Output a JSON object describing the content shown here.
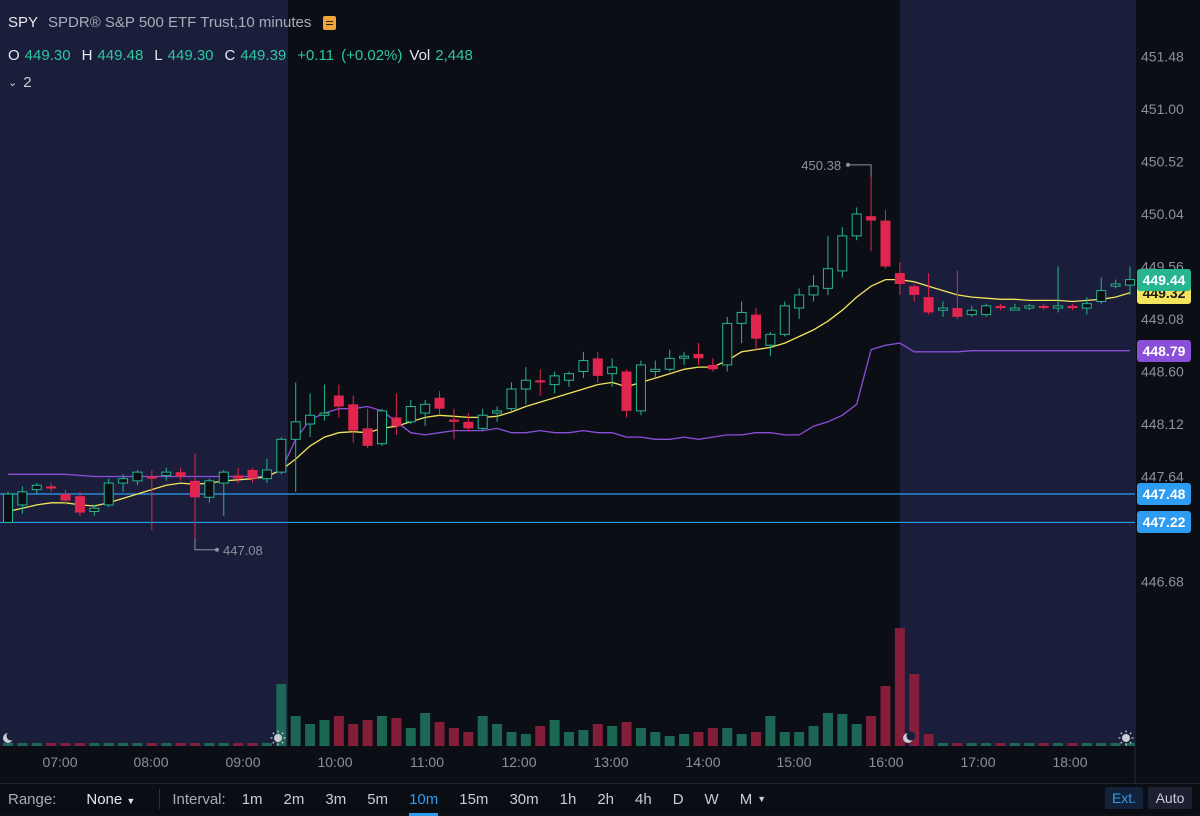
{
  "header": {
    "symbol": "SPY",
    "name": "SPDR® S&P 500 ETF Trust,10 minutes",
    "o_label": "O",
    "o_value": "449.30",
    "h_label": "H",
    "h_value": "449.48",
    "l_label": "L",
    "l_value": "449.30",
    "c_label": "C",
    "c_value": "449.39",
    "change": "+0.11",
    "change_pct": "(+0.02%)",
    "vol_label": "Vol",
    "vol_value": "2,448",
    "indicator_count": "2"
  },
  "price_badges": [
    {
      "text": "449.44",
      "value": 449.44,
      "bg": "#26b58f",
      "fg": "#ffffff"
    },
    {
      "text": "448.79",
      "value": 448.79,
      "bg": "#8a4fd8",
      "fg": "#ffffff"
    },
    {
      "text": "447.48",
      "value": 447.48,
      "bg": "#2e9cf0",
      "fg": "#ffffff"
    },
    {
      "text": "447.22",
      "value": 447.22,
      "bg": "#2e9cf0",
      "fg": "#ffffff"
    }
  ],
  "ma_badge": {
    "text": "449.32",
    "value": 449.32,
    "bg": "#f2e45c",
    "fg": "#1a1a1a"
  },
  "bottom_bar": {
    "range_label": "Range:",
    "range_value": "None",
    "interval_label": "Interval:",
    "intervals": [
      "1m",
      "2m",
      "3m",
      "5m",
      "10m",
      "15m",
      "30m",
      "1h",
      "2h",
      "4h",
      "D",
      "W",
      "M"
    ],
    "active_interval": "10m",
    "ext_label": "Ext.",
    "auto_label": "Auto"
  },
  "chart_data": {
    "type": "candlestick",
    "colors": {
      "up": "#26b58f",
      "down": "#e0264f",
      "ma": "#f2e45c",
      "vwap": "#8a4fd8",
      "hline": "#2e9cf0",
      "extended_bg": "#1a1e3a"
    },
    "y_ticks": [
      451.48,
      451.0,
      450.52,
      450.04,
      449.56,
      449.08,
      448.6,
      448.12,
      447.64,
      446.68
    ],
    "ylim": [
      446.4,
      451.7
    ],
    "x_ticks": [
      "07:00",
      "08:00",
      "09:00",
      "10:00",
      "11:00",
      "12:00",
      "13:00",
      "14:00",
      "15:00",
      "16:00",
      "17:00",
      "18:00"
    ],
    "horizontal_lines": [
      447.48,
      447.22
    ],
    "annotations": [
      {
        "text": "450.38",
        "value": 450.38
      },
      {
        "text": "447.08",
        "value": 447.08
      }
    ],
    "candles": [
      {
        "o": 447.22,
        "h": 447.5,
        "l": 447.22,
        "c": 447.48
      },
      {
        "o": 447.38,
        "h": 447.55,
        "l": 447.3,
        "c": 447.5
      },
      {
        "o": 447.52,
        "h": 447.58,
        "l": 447.48,
        "c": 447.56
      },
      {
        "o": 447.55,
        "h": 447.58,
        "l": 447.5,
        "c": 447.53
      },
      {
        "o": 447.48,
        "h": 447.52,
        "l": 447.38,
        "c": 447.42
      },
      {
        "o": 447.46,
        "h": 447.5,
        "l": 447.28,
        "c": 447.31
      },
      {
        "o": 447.32,
        "h": 447.38,
        "l": 447.28,
        "c": 447.35
      },
      {
        "o": 447.38,
        "h": 447.62,
        "l": 447.36,
        "c": 447.58
      },
      {
        "o": 447.58,
        "h": 447.66,
        "l": 447.5,
        "c": 447.62
      },
      {
        "o": 447.6,
        "h": 447.7,
        "l": 447.56,
        "c": 447.68
      },
      {
        "o": 447.64,
        "h": 447.7,
        "l": 447.15,
        "c": 447.62
      },
      {
        "o": 447.65,
        "h": 447.72,
        "l": 447.6,
        "c": 447.68
      },
      {
        "o": 447.68,
        "h": 447.72,
        "l": 447.6,
        "c": 447.64
      },
      {
        "o": 447.6,
        "h": 447.85,
        "l": 447.08,
        "c": 447.45
      },
      {
        "o": 447.45,
        "h": 447.62,
        "l": 447.4,
        "c": 447.6
      },
      {
        "o": 447.58,
        "h": 447.7,
        "l": 447.28,
        "c": 447.68
      },
      {
        "o": 447.65,
        "h": 447.72,
        "l": 447.58,
        "c": 447.62
      },
      {
        "o": 447.7,
        "h": 447.72,
        "l": 447.58,
        "c": 447.62
      },
      {
        "o": 447.62,
        "h": 447.8,
        "l": 447.58,
        "c": 447.7
      },
      {
        "o": 447.68,
        "h": 448.0,
        "l": 447.66,
        "c": 447.98
      },
      {
        "o": 447.98,
        "h": 448.5,
        "l": 447.5,
        "c": 448.14
      },
      {
        "o": 448.12,
        "h": 448.4,
        "l": 448.0,
        "c": 448.2
      },
      {
        "o": 448.2,
        "h": 448.48,
        "l": 448.15,
        "c": 448.22
      },
      {
        "o": 448.38,
        "h": 448.48,
        "l": 448.18,
        "c": 448.28
      },
      {
        "o": 448.3,
        "h": 448.38,
        "l": 447.95,
        "c": 448.06
      },
      {
        "o": 448.08,
        "h": 448.26,
        "l": 447.9,
        "c": 447.92
      },
      {
        "o": 447.94,
        "h": 448.26,
        "l": 447.92,
        "c": 448.24
      },
      {
        "o": 448.18,
        "h": 448.4,
        "l": 448.02,
        "c": 448.1
      },
      {
        "o": 448.14,
        "h": 448.34,
        "l": 448.12,
        "c": 448.28
      },
      {
        "o": 448.22,
        "h": 448.34,
        "l": 448.1,
        "c": 448.3
      },
      {
        "o": 448.36,
        "h": 448.42,
        "l": 448.2,
        "c": 448.26
      },
      {
        "o": 448.16,
        "h": 448.26,
        "l": 447.98,
        "c": 448.14
      },
      {
        "o": 448.14,
        "h": 448.22,
        "l": 448.05,
        "c": 448.08
      },
      {
        "o": 448.08,
        "h": 448.26,
        "l": 448.06,
        "c": 448.2
      },
      {
        "o": 448.22,
        "h": 448.28,
        "l": 448.14,
        "c": 448.24
      },
      {
        "o": 448.26,
        "h": 448.5,
        "l": 448.24,
        "c": 448.44
      },
      {
        "o": 448.44,
        "h": 448.64,
        "l": 448.3,
        "c": 448.52
      },
      {
        "o": 448.52,
        "h": 448.62,
        "l": 448.38,
        "c": 448.5
      },
      {
        "o": 448.48,
        "h": 448.6,
        "l": 448.4,
        "c": 448.56
      },
      {
        "o": 448.52,
        "h": 448.6,
        "l": 448.46,
        "c": 448.58
      },
      {
        "o": 448.6,
        "h": 448.78,
        "l": 448.54,
        "c": 448.7
      },
      {
        "o": 448.72,
        "h": 448.78,
        "l": 448.5,
        "c": 448.56
      },
      {
        "o": 448.58,
        "h": 448.72,
        "l": 448.46,
        "c": 448.64
      },
      {
        "o": 448.6,
        "h": 448.62,
        "l": 448.18,
        "c": 448.24
      },
      {
        "o": 448.24,
        "h": 448.7,
        "l": 448.2,
        "c": 448.66
      },
      {
        "o": 448.6,
        "h": 448.7,
        "l": 448.54,
        "c": 448.62
      },
      {
        "o": 448.62,
        "h": 448.8,
        "l": 448.6,
        "c": 448.72
      },
      {
        "o": 448.74,
        "h": 448.78,
        "l": 448.66,
        "c": 448.74
      },
      {
        "o": 448.76,
        "h": 448.86,
        "l": 448.66,
        "c": 448.72
      },
      {
        "o": 448.66,
        "h": 448.72,
        "l": 448.6,
        "c": 448.62
      },
      {
        "o": 448.66,
        "h": 449.1,
        "l": 448.6,
        "c": 449.04
      },
      {
        "o": 449.04,
        "h": 449.24,
        "l": 448.86,
        "c": 449.14
      },
      {
        "o": 449.12,
        "h": 449.18,
        "l": 448.8,
        "c": 448.9
      },
      {
        "o": 448.84,
        "h": 448.96,
        "l": 448.74,
        "c": 448.94
      },
      {
        "o": 448.94,
        "h": 449.24,
        "l": 448.92,
        "c": 449.2
      },
      {
        "o": 449.18,
        "h": 449.36,
        "l": 449.08,
        "c": 449.3
      },
      {
        "o": 449.3,
        "h": 449.48,
        "l": 449.24,
        "c": 449.38
      },
      {
        "o": 449.36,
        "h": 449.84,
        "l": 449.3,
        "c": 449.54
      },
      {
        "o": 449.52,
        "h": 449.92,
        "l": 449.46,
        "c": 449.84
      },
      {
        "o": 449.84,
        "h": 450.1,
        "l": 449.8,
        "c": 450.04
      },
      {
        "o": 450.02,
        "h": 450.38,
        "l": 449.7,
        "c": 449.98
      },
      {
        "o": 449.98,
        "h": 450.08,
        "l": 449.54,
        "c": 449.56
      },
      {
        "o": 449.5,
        "h": 449.6,
        "l": 449.3,
        "c": 449.4
      },
      {
        "o": 449.38,
        "h": 449.4,
        "l": 449.24,
        "c": 449.3
      },
      {
        "o": 449.28,
        "h": 449.5,
        "l": 449.12,
        "c": 449.14
      },
      {
        "o": 449.16,
        "h": 449.24,
        "l": 449.1,
        "c": 449.18
      },
      {
        "o": 449.18,
        "h": 449.52,
        "l": 449.08,
        "c": 449.1
      },
      {
        "o": 449.12,
        "h": 449.2,
        "l": 449.1,
        "c": 449.16
      },
      {
        "o": 449.12,
        "h": 449.22,
        "l": 449.1,
        "c": 449.2
      },
      {
        "o": 449.2,
        "h": 449.22,
        "l": 449.16,
        "c": 449.18
      },
      {
        "o": 449.18,
        "h": 449.22,
        "l": 449.16,
        "c": 449.18
      },
      {
        "o": 449.18,
        "h": 449.22,
        "l": 449.16,
        "c": 449.2
      },
      {
        "o": 449.2,
        "h": 449.22,
        "l": 449.16,
        "c": 449.18
      },
      {
        "o": 449.18,
        "h": 449.56,
        "l": 449.14,
        "c": 449.2
      },
      {
        "o": 449.2,
        "h": 449.22,
        "l": 449.16,
        "c": 449.18
      },
      {
        "o": 449.18,
        "h": 449.28,
        "l": 449.12,
        "c": 449.22
      },
      {
        "o": 449.24,
        "h": 449.46,
        "l": 449.22,
        "c": 449.34
      },
      {
        "o": 449.38,
        "h": 449.44,
        "l": 449.36,
        "c": 449.4
      },
      {
        "o": 449.39,
        "h": 449.56,
        "l": 449.3,
        "c": 449.44
      }
    ],
    "moving_average": [
      447.32,
      447.35,
      447.38,
      447.4,
      447.4,
      447.38,
      447.37,
      447.4,
      447.44,
      447.48,
      447.52,
      447.56,
      447.58,
      447.57,
      447.58,
      447.6,
      447.61,
      447.62,
      447.64,
      447.7,
      447.8,
      447.92,
      448.0,
      448.04,
      448.05,
      448.04,
      448.08,
      448.1,
      448.14,
      448.18,
      448.2,
      448.19,
      448.18,
      448.18,
      448.19,
      448.23,
      448.28,
      448.32,
      448.36,
      448.4,
      448.44,
      448.48,
      448.5,
      448.46,
      448.5,
      448.54,
      448.58,
      448.62,
      448.64,
      448.64,
      448.7,
      448.78,
      448.8,
      448.82,
      448.86,
      448.92,
      448.98,
      449.06,
      449.16,
      449.28,
      449.38,
      449.44,
      449.44,
      449.42,
      449.38,
      449.34,
      449.3,
      449.28,
      449.27,
      449.26,
      449.26,
      449.25,
      449.25,
      449.25,
      449.24,
      449.25,
      449.26,
      449.28,
      449.32
    ],
    "vwap": [
      447.66,
      447.66,
      447.66,
      447.66,
      447.66,
      447.65,
      447.64,
      447.64,
      447.64,
      447.64,
      447.64,
      447.64,
      447.64,
      447.64,
      447.64,
      447.64,
      447.64,
      447.64,
      447.64,
      447.7,
      447.98,
      448.16,
      448.22,
      448.26,
      448.26,
      448.28,
      448.24,
      448.14,
      448.04,
      448.02,
      448.04,
      448.06,
      448.06,
      448.06,
      448.08,
      448.04,
      448.04,
      448.06,
      448.04,
      448.04,
      448.06,
      448.04,
      448.04,
      448.0,
      448.0,
      447.98,
      447.98,
      448.0,
      447.98,
      448.0,
      448.02,
      448.02,
      448.04,
      448.04,
      448.02,
      448.02,
      448.1,
      448.14,
      448.2,
      448.3,
      448.8,
      448.84,
      448.86,
      448.78,
      448.78,
      448.78,
      448.78,
      448.79,
      448.79,
      448.79,
      448.79,
      448.79,
      448.79,
      448.79,
      448.79,
      448.79,
      448.79,
      448.79,
      448.79
    ],
    "volume": [
      3,
      3,
      3,
      3,
      3,
      3,
      3,
      3,
      3,
      3,
      3,
      3,
      3,
      3,
      3,
      3,
      3,
      3,
      3,
      62,
      30,
      22,
      26,
      30,
      22,
      26,
      30,
      28,
      18,
      33,
      24,
      18,
      14,
      30,
      22,
      14,
      12,
      20,
      26,
      14,
      16,
      22,
      20,
      24,
      18,
      14,
      10,
      12,
      14,
      18,
      18,
      12,
      14,
      30,
      14,
      14,
      20,
      33,
      32,
      22,
      30,
      60,
      118,
      72,
      12,
      3,
      3,
      3,
      3,
      3,
      3,
      3,
      3,
      3,
      3,
      3,
      3,
      3,
      3
    ],
    "volume_max": 118
  }
}
